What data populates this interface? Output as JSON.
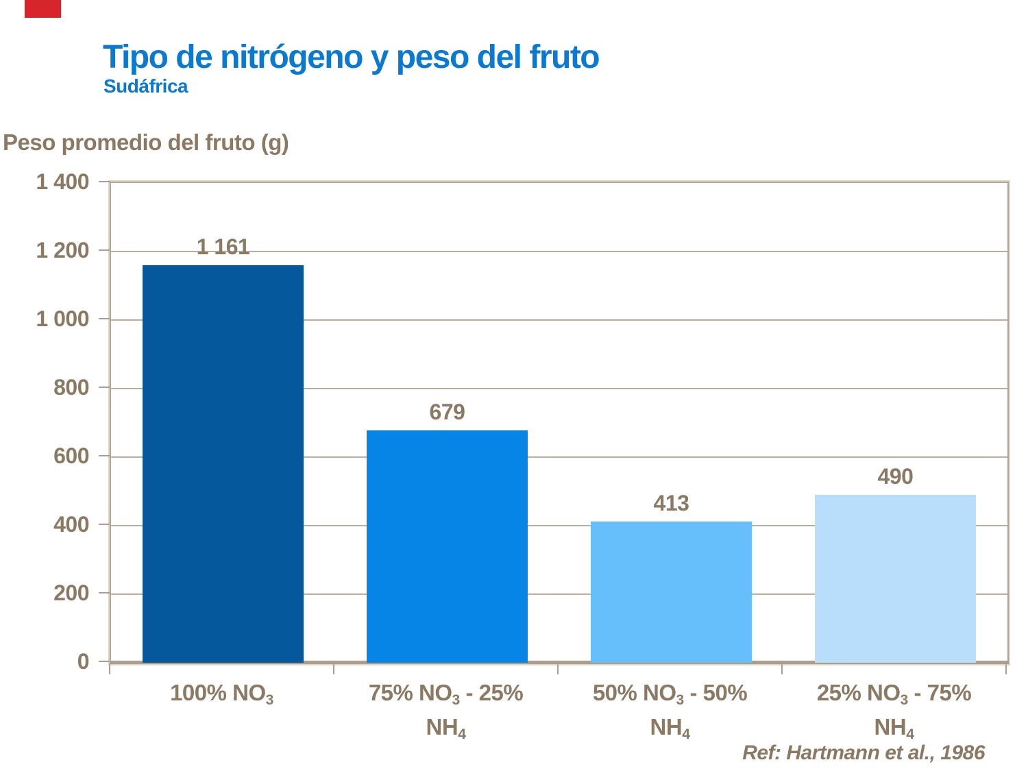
{
  "decor": {
    "red_bar_color": "#d6252b"
  },
  "header": {
    "title": "Tipo de nitrógeno y peso del fruto",
    "subtitle": "Sudáfrica",
    "title_color": "#0b79d0"
  },
  "reference": "Ref: Hartmann et al., 1986",
  "chart_data": {
    "type": "bar",
    "title": "Tipo de nitrógeno y peso del fruto",
    "subtitle": "Sudáfrica",
    "ylabel": "Peso promedio del fruto (g)",
    "xlabel": "",
    "ylim": [
      0,
      1400
    ],
    "ytick_step": 200,
    "ytick_labels": [
      "0",
      "200",
      "400",
      "600",
      "800",
      "1 000",
      "1 200",
      "1 400"
    ],
    "grid": true,
    "legend": false,
    "categories_plain": [
      "100% NO3",
      "75% NO3 - 25% NH4",
      "50% NO3 - 50% NH4",
      "25% NO3 - 75% NH4"
    ],
    "categories_rich": [
      {
        "lines": [
          [
            {
              "t": "100% NO"
            },
            {
              "t": "3",
              "sub": true
            }
          ]
        ]
      },
      {
        "lines": [
          [
            {
              "t": "75% NO"
            },
            {
              "t": "3",
              "sub": true
            },
            {
              "t": " - 25%"
            }
          ],
          [
            {
              "t": "NH"
            },
            {
              "t": "4",
              "sub": true
            }
          ]
        ]
      },
      {
        "lines": [
          [
            {
              "t": "50% NO"
            },
            {
              "t": "3",
              "sub": true
            },
            {
              "t": " - 50%"
            }
          ],
          [
            {
              "t": "NH"
            },
            {
              "t": "4",
              "sub": true
            }
          ]
        ]
      },
      {
        "lines": [
          [
            {
              "t": "25% NO"
            },
            {
              "t": "3",
              "sub": true
            },
            {
              "t": " - 75%"
            }
          ],
          [
            {
              "t": "NH"
            },
            {
              "t": "4",
              "sub": true
            }
          ]
        ]
      }
    ],
    "values": [
      1161,
      679,
      413,
      490
    ],
    "value_labels": [
      "1 161",
      "679",
      "413",
      "490"
    ],
    "bar_colors": [
      "#05589c",
      "#0685e6",
      "#66befb",
      "#b9defb"
    ],
    "text_color": "#8a7963",
    "grid_color": "#bcae9c",
    "border_color": "#b3a494",
    "axis_line_color": "#ac9d8c",
    "reference": "Ref: Hartmann et al., 1986"
  }
}
